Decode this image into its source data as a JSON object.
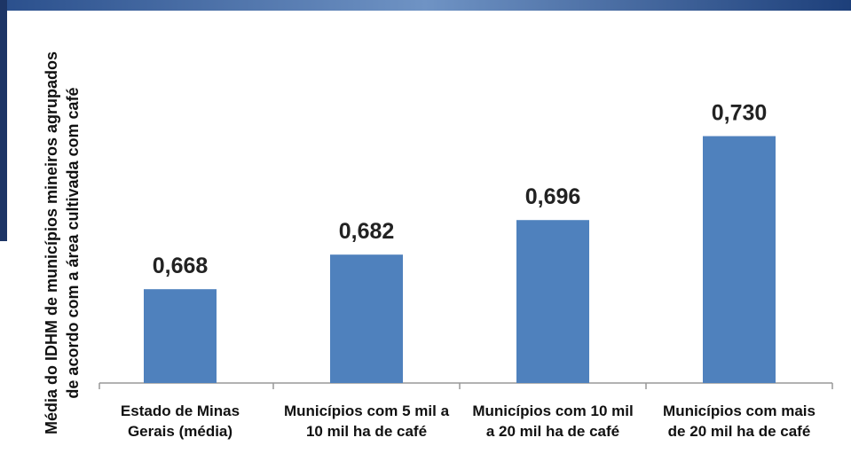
{
  "chart_data": {
    "type": "bar",
    "y_label": "Média do IDHM de municípios mineiros agrupados de acordo com a área cultivada com café",
    "categories": [
      "Estado de Minas Gerais (média)",
      "Municípios com 5 mil a 10 mil ha de café",
      "Municípios com 10 mil a 20 mil ha de café",
      "Municípios com mais de 20 mil ha de café"
    ],
    "values": [
      0.668,
      0.682,
      0.696,
      0.73
    ],
    "value_labels": [
      "0,668",
      "0,682",
      "0,696",
      "0,730"
    ],
    "color": "#4f81bd",
    "ylim": [
      0.63,
      0.76
    ]
  }
}
